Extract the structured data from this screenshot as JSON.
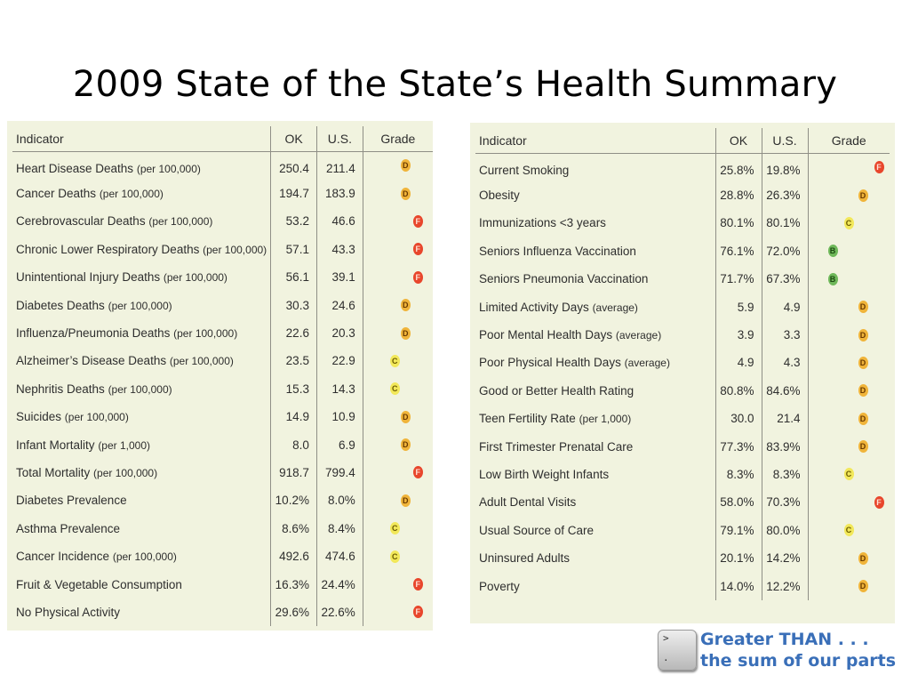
{
  "title": "2009 State of the State’s Health Summary",
  "colors": {
    "panel_bg": "#f1f3df",
    "grade_F": "#e8462c",
    "grade_D": "#f0b43a",
    "grade_C": "#f2e85a",
    "grade_B": "#6fb85a",
    "logo_text": "#3a6fb8"
  },
  "left_table": {
    "headers": {
      "indicator": "Indicator",
      "ok": "OK",
      "us": "U.S.",
      "grade": "Grade"
    },
    "rows": [
      {
        "label": "Heart Disease Deaths",
        "unit": "(per 100,000)",
        "ok": "250.4",
        "us": "211.4",
        "grade": "D"
      },
      {
        "label": "Cancer Deaths",
        "unit": "(per 100,000)",
        "ok": "194.7",
        "us": "183.9",
        "grade": "D"
      },
      {
        "label": "Cerebrovascular Deaths",
        "unit": "(per 100,000)",
        "ok": "53.2",
        "us": "46.6",
        "grade": "F"
      },
      {
        "label": "Chronic Lower Respiratory Deaths",
        "unit": "(per 100,000)",
        "ok": "57.1",
        "us": "43.3",
        "grade": "F"
      },
      {
        "label": "Unintentional Injury Deaths",
        "unit": "(per 100,000)",
        "ok": "56.1",
        "us": "39.1",
        "grade": "F"
      },
      {
        "label": "Diabetes Deaths",
        "unit": "(per 100,000)",
        "ok": "30.3",
        "us": "24.6",
        "grade": "D"
      },
      {
        "label": "Influenza/Pneumonia Deaths",
        "unit": "(per 100,000)",
        "ok": "22.6",
        "us": "20.3",
        "grade": "D"
      },
      {
        "label": "Alzheimer’s Disease Deaths",
        "unit": "(per 100,000)",
        "ok": "23.5",
        "us": "22.9",
        "grade": "C"
      },
      {
        "label": "Nephritis Deaths",
        "unit": "(per 100,000)",
        "ok": "15.3",
        "us": "14.3",
        "grade": "C"
      },
      {
        "label": "Suicides",
        "unit": "(per 100,000)",
        "ok": "14.9",
        "us": "10.9",
        "grade": "D"
      },
      {
        "label": "Infant Mortality",
        "unit": "(per 1,000)",
        "ok": "8.0",
        "us": "6.9",
        "grade": "D"
      },
      {
        "label": "Total Mortality",
        "unit": "(per 100,000)",
        "ok": "918.7",
        "us": "799.4",
        "grade": "F"
      },
      {
        "label": "Diabetes Prevalence",
        "unit": "",
        "ok": "10.2%",
        "us": "8.0%",
        "grade": "D"
      },
      {
        "label": "Asthma Prevalence",
        "unit": "",
        "ok": "8.6%",
        "us": "8.4%",
        "grade": "C"
      },
      {
        "label": "Cancer Incidence",
        "unit": "(per 100,000)",
        "ok": "492.6",
        "us": "474.6",
        "grade": "C"
      },
      {
        "label": "Fruit & Vegetable Consumption",
        "unit": "",
        "ok": "16.3%",
        "us": "24.4%",
        "grade": "F"
      },
      {
        "label": "No Physical Activity",
        "unit": "",
        "ok": "29.6%",
        "us": "22.6%",
        "grade": "F"
      }
    ]
  },
  "right_table": {
    "headers": {
      "indicator": "Indicator",
      "ok": "OK",
      "us": "U.S.",
      "grade": "Grade"
    },
    "rows": [
      {
        "label": "Current Smoking",
        "unit": "",
        "ok": "25.8%",
        "us": "19.8%",
        "grade": "F"
      },
      {
        "label": "Obesity",
        "unit": "",
        "ok": "28.8%",
        "us": "26.3%",
        "grade": "D"
      },
      {
        "label": "Immunizations <3 years",
        "unit": "",
        "ok": "80.1%",
        "us": "80.1%",
        "grade": "C"
      },
      {
        "label": "Seniors Influenza Vaccination",
        "unit": "",
        "ok": "76.1%",
        "us": "72.0%",
        "grade": "B"
      },
      {
        "label": "Seniors Pneumonia Vaccination",
        "unit": "",
        "ok": "71.7%",
        "us": "67.3%",
        "grade": "B"
      },
      {
        "label": "Limited Activity Days",
        "unit": "(average)",
        "ok": "5.9",
        "us": "4.9",
        "grade": "D"
      },
      {
        "label": "Poor Mental Health Days",
        "unit": "(average)",
        "ok": "3.9",
        "us": "3.3",
        "grade": "D"
      },
      {
        "label": "Poor Physical Health Days",
        "unit": "(average)",
        "ok": "4.9",
        "us": "4.3",
        "grade": "D"
      },
      {
        "label": "Good or Better Health Rating",
        "unit": "",
        "ok": "80.8%",
        "us": "84.6%",
        "grade": "D"
      },
      {
        "label": "Teen Fertility Rate",
        "unit": "(per 1,000)",
        "ok": "30.0",
        "us": "21.4",
        "grade": "D"
      },
      {
        "label": "First Trimester Prenatal Care",
        "unit": "",
        "ok": "77.3%",
        "us": "83.9%",
        "grade": "D"
      },
      {
        "label": "Low Birth Weight Infants",
        "unit": "",
        "ok": "8.3%",
        "us": "8.3%",
        "grade": "C"
      },
      {
        "label": "Adult Dental Visits",
        "unit": "",
        "ok": "58.0%",
        "us": "70.3%",
        "grade": "F"
      },
      {
        "label": "Usual Source of Care",
        "unit": "",
        "ok": "79.1%",
        "us": "80.0%",
        "grade": "C"
      },
      {
        "label": "Uninsured Adults",
        "unit": "",
        "ok": "20.1%",
        "us": "14.2%",
        "grade": "D"
      },
      {
        "label": "Poverty",
        "unit": "",
        "ok": "14.0%",
        "us": "12.2%",
        "grade": "D"
      }
    ]
  },
  "logo": {
    "key_glyph_top": ">",
    "key_glyph_bottom": ".",
    "line1": "Greater THAN . . .",
    "line2": "the sum of our parts"
  }
}
